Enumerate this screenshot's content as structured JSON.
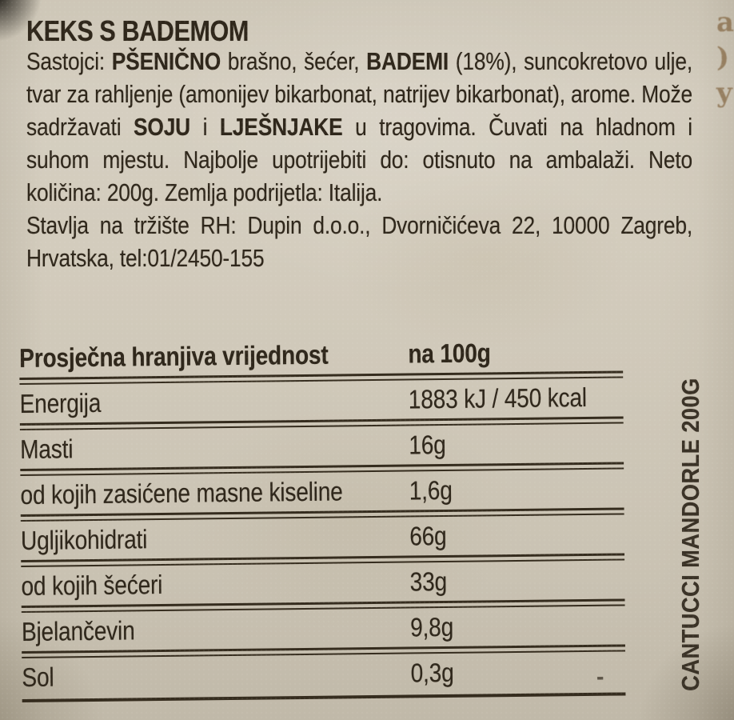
{
  "product": {
    "title": "KEKS S BADEMOM",
    "side_text": "CANTUCCI MANDORLE 200G"
  },
  "ingredients": {
    "segments": [
      {
        "text": "Sastojci: ",
        "bold": false
      },
      {
        "text": "PŠENIČNO",
        "bold": true
      },
      {
        "text": " brašno, šećer, ",
        "bold": false
      },
      {
        "text": "BADEMI",
        "bold": true
      },
      {
        "text": " (18%), suncokretovo ulje, tvar za rahljenje (amonijev bikarbonat, natrijev bikarbonat), arome. Može sadržavati ",
        "bold": false
      },
      {
        "text": "SOJU",
        "bold": true
      },
      {
        "text": " i ",
        "bold": false
      },
      {
        "text": "LJEŠNJAKE",
        "bold": true
      },
      {
        "text": " u tragovima. Čuvati na hladnom i suhom mjestu. Najbolje upotrijebiti do: otisnuto na ambalaži. Neto količina: 200g. Zemlja podrijetla: Italija.",
        "bold": false
      }
    ],
    "distributor": "Stavlja na tržište RH: Dupin d.o.o., Dvorničićeva 22, 10000 Zagreb, Hrvatska, tel:01/2450-155"
  },
  "nutrition": {
    "header": {
      "label": "Prosječna hranjiva vrijednost",
      "per": "na 100g"
    },
    "rows": [
      {
        "label": "Energija",
        "value": "1883 kJ / 450 kcal"
      },
      {
        "label": "Masti",
        "value": "16g"
      },
      {
        "label": "od kojih zasićene masne kiseline",
        "value": "1,6g"
      },
      {
        "label": "Ugljikohidrati",
        "value": "66g"
      },
      {
        "label": "od kojih šećeri",
        "value": "33g"
      },
      {
        "label": "Bjelančevin",
        "value": "9,8g"
      },
      {
        "label": "Sol",
        "value": "0,3g"
      }
    ]
  },
  "artifacts": {
    "edge_glyphs": [
      "a",
      ")",
      "y"
    ],
    "dash_mark": "-"
  },
  "colors": {
    "paper": "#d3ccbd",
    "ink": "#2f271b"
  }
}
